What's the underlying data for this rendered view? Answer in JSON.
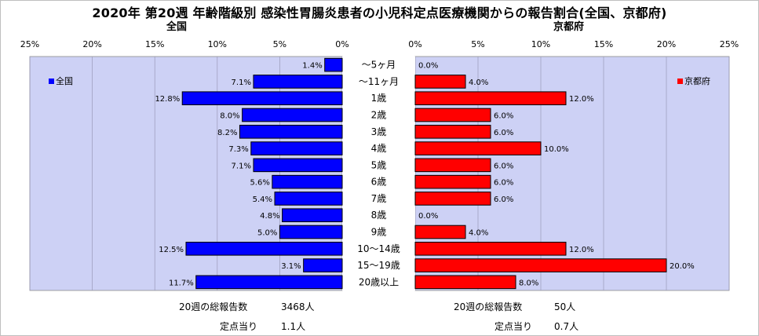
{
  "title": "2020年 第20週 年齢階級別 感染性胃腸炎患者の小児科定点医療機関からの報告割合(全国、京都府)",
  "colors": {
    "national": "#0000ff",
    "kyoto": "#ff0000",
    "plot_bg": "#cdd1f5",
    "label_bg": "#ffffff"
  },
  "chart_data": [
    {
      "type": "bar",
      "orientation": "horizontal",
      "direction": "leftward",
      "title": "全国",
      "legend": {
        "label": "全国",
        "placement": "top-left"
      },
      "xlim": [
        0,
        25
      ],
      "xticks": [
        "25%",
        "20%",
        "15%",
        "10%",
        "5%",
        "0%"
      ],
      "categories": [
        "～5ヶ月",
        "～11ヶ月",
        "1歳",
        "2歳",
        "3歳",
        "4歳",
        "5歳",
        "6歳",
        "7歳",
        "8歳",
        "9歳",
        "10～14歳",
        "15～19歳",
        "20歳以上"
      ],
      "values": [
        1.4,
        7.1,
        12.8,
        8.0,
        8.2,
        7.3,
        7.1,
        5.6,
        5.4,
        4.8,
        5.0,
        12.5,
        3.1,
        11.7
      ],
      "value_labels": [
        "1.4%",
        "7.1%",
        "12.8%",
        "8.0%",
        "8.2%",
        "7.3%",
        "7.1%",
        "5.6%",
        "5.4%",
        "4.8%",
        "5.0%",
        "12.5%",
        "3.1%",
        "11.7%"
      ]
    },
    {
      "type": "bar",
      "orientation": "horizontal",
      "direction": "rightward",
      "title": "京都府",
      "legend": {
        "label": "京都府",
        "placement": "top-right"
      },
      "xlim": [
        0,
        25
      ],
      "xticks": [
        "0%",
        "5%",
        "10%",
        "15%",
        "20%",
        "25%"
      ],
      "categories": [
        "～5ヶ月",
        "～11ヶ月",
        "1歳",
        "2歳",
        "3歳",
        "4歳",
        "5歳",
        "6歳",
        "7歳",
        "8歳",
        "9歳",
        "10～14歳",
        "15～19歳",
        "20歳以上"
      ],
      "values": [
        0.0,
        4.0,
        12.0,
        6.0,
        6.0,
        10.0,
        6.0,
        6.0,
        6.0,
        0.0,
        4.0,
        12.0,
        20.0,
        8.0
      ],
      "value_labels": [
        "0.0%",
        "4.0%",
        "12.0%",
        "6.0%",
        "6.0%",
        "10.0%",
        "6.0%",
        "6.0%",
        "6.0%",
        "0.0%",
        "4.0%",
        "12.0%",
        "20.0%",
        "8.0%"
      ]
    }
  ],
  "footer": {
    "national": {
      "total_label": "20週の総報告数",
      "total_value": "3468人",
      "per_label": "定点当り",
      "per_value": "1.1人"
    },
    "kyoto": {
      "total_label": "20週の総報告数",
      "total_value": "50人",
      "per_label": "定点当り",
      "per_value": "0.7人"
    }
  }
}
